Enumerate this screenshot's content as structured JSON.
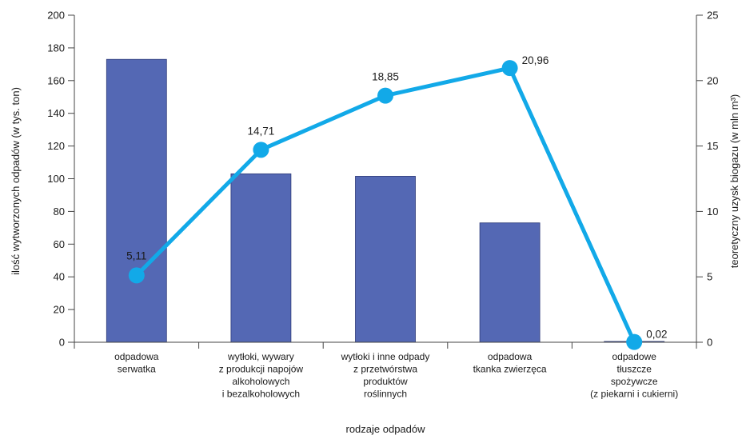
{
  "chart_data": {
    "type": "bar",
    "categories": [
      [
        "odpadowa",
        "serwatka"
      ],
      [
        "wytłoki, wywary",
        "z produkcji napojów",
        "alkoholowych",
        "i bezalkoholowych"
      ],
      [
        "wytłoki i inne odpady",
        "z przetwórstwa",
        "produktów",
        "roślinnych"
      ],
      [
        "odpadowa",
        "tkanka zwierzęca"
      ],
      [
        "odpadowe",
        "tłuszcze",
        "spożywcze",
        "(z piekarni i cukierni)"
      ]
    ],
    "series": [
      {
        "type": "bar",
        "axis": "left",
        "values": [
          173,
          103,
          101.5,
          73,
          0
        ]
      },
      {
        "type": "line",
        "axis": "right",
        "values": [
          5.11,
          14.71,
          18.85,
          20.96,
          0.02
        ]
      }
    ],
    "line_labels": [
      "5,11",
      "14,71",
      "18,85",
      "20,96",
      "0,02"
    ],
    "xlabel": "rodzaje odpadów",
    "ylabel": "ilość wytworzonych odpadów (w tys. ton)",
    "y2label": "teoretyczny uzysk biogazu (w mln m³)",
    "ylim": [
      0,
      200
    ],
    "y2lim": [
      0,
      25
    ],
    "yticks": [
      0,
      20,
      40,
      60,
      80,
      100,
      120,
      140,
      160,
      180,
      200
    ],
    "y2ticks": [
      0,
      5,
      10,
      15,
      20,
      25
    ],
    "grid": false,
    "colors": {
      "bar": "#5468b4",
      "bar_edge": "#2d3a78",
      "line": "#12a9e8",
      "axis": "#444444"
    }
  }
}
